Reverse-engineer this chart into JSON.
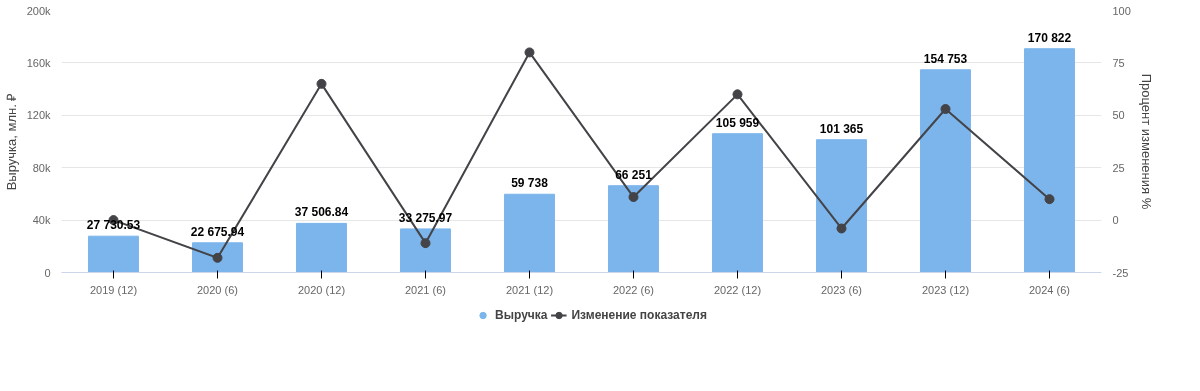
{
  "chart_data": {
    "type": "bar",
    "ylabel": "Выручка, млн. ₽",
    "y2label": "Процент изменения %",
    "categories": [
      "2019 (12)",
      "2020 (6)",
      "2020 (12)",
      "2021 (6)",
      "2021 (12)",
      "2022 (6)",
      "2022 (12)",
      "2023 (6)",
      "2023 (12)",
      "2024 (6)"
    ],
    "series": [
      {
        "name": "Выручка",
        "color": "#7cb5ec",
        "values": [
          27730.53,
          22675.94,
          37506.84,
          33275.97,
          59738,
          66251,
          105959,
          101365,
          154753,
          170822
        ],
        "value_labels": [
          "27 730.53",
          "22 675.94",
          "37 506.84",
          "33 275.97",
          "59 738",
          "66 251",
          "105 959",
          "101 365",
          "154 753",
          "170 822"
        ]
      },
      {
        "name": "Изменение показателя",
        "type": "line",
        "axis": "y2",
        "color": "#434348",
        "values": [
          0,
          -18,
          65,
          -11,
          80,
          11,
          60,
          -4,
          53,
          10
        ]
      }
    ],
    "ylim": [
      0,
      200000
    ],
    "yticks": [
      0,
      {
        "value": 40000,
        "label": "40k"
      },
      {
        "value": 80000,
        "label": "80k"
      },
      {
        "value": 120000,
        "label": "120k"
      },
      {
        "value": 160000,
        "label": "160k"
      },
      {
        "value": 200000,
        "label": "200k"
      }
    ],
    "y2lim": [
      -25,
      100
    ],
    "y2ticks": [
      -25,
      0,
      25,
      50,
      75,
      100
    ],
    "grid": "y",
    "legend": "bottom",
    "marker": "circle",
    "line_style": "solid"
  }
}
